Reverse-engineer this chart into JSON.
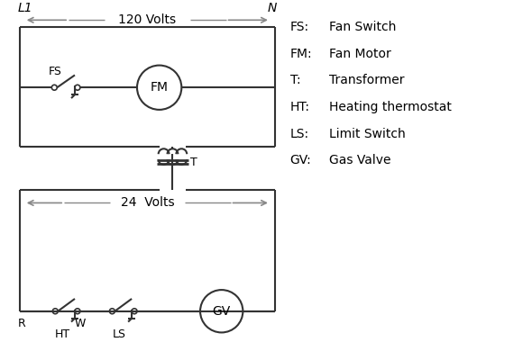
{
  "bg_color": "#ffffff",
  "line_color": "#333333",
  "gray_color": "#888888",
  "text_color": "#000000",
  "legend_items": [
    [
      "FS:",
      "Fan Switch"
    ],
    [
      "FM:",
      "Fan Motor"
    ],
    [
      "T:",
      "Transformer"
    ],
    [
      "HT:",
      "Heating thermostat"
    ],
    [
      "LS:",
      "Limit Switch"
    ],
    [
      "GV:",
      "Gas Valve"
    ]
  ],
  "label_L1": "L1",
  "label_N": "N",
  "label_120V": "120 Volts",
  "label_24V": "24  Volts",
  "label_T": "T",
  "label_FS": "FS",
  "label_FM": "FM",
  "label_GV": "GV",
  "label_R": "R",
  "label_W": "W",
  "label_HT": "HT",
  "label_LS": "LS"
}
